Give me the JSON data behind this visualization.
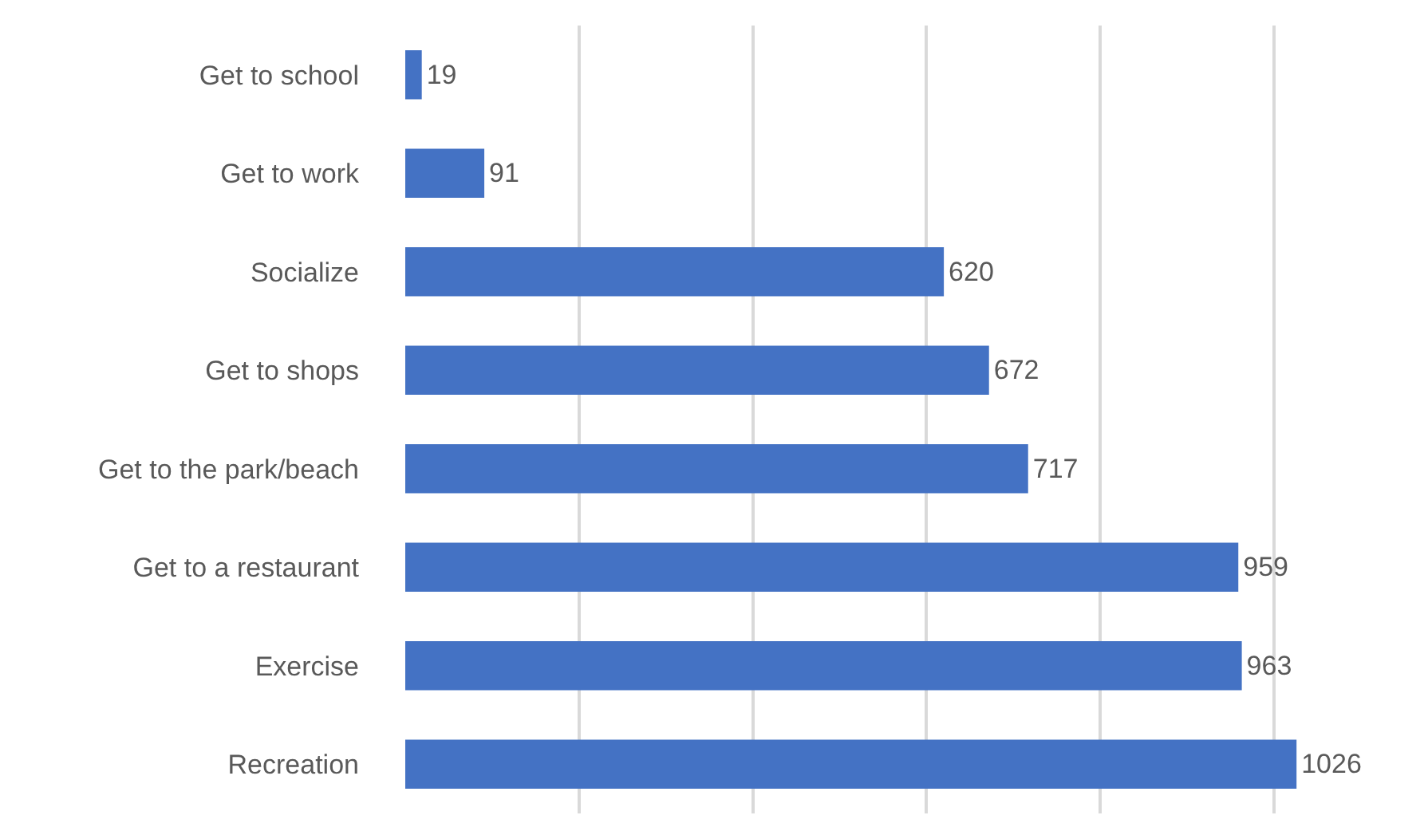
{
  "chart_data": {
    "type": "bar",
    "orientation": "horizontal",
    "categories": [
      "Get to school",
      "Get to work",
      "Socialize",
      "Get to shops",
      "Get to the park/beach",
      "Get to a restaurant",
      "Exercise",
      "Recreation"
    ],
    "values": [
      19,
      91,
      620,
      672,
      717,
      959,
      963,
      1026
    ],
    "color": "#4472c4",
    "grid": "x",
    "tick_labels": "y",
    "data_labels": true
  }
}
